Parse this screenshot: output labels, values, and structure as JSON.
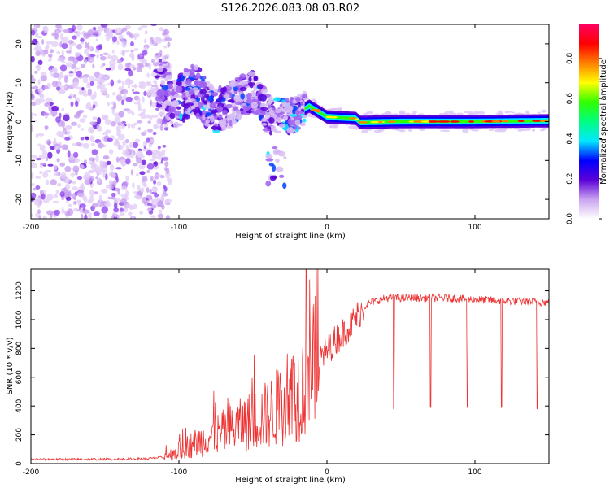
{
  "page_title": "S126.2026.083.08.03.R02",
  "colorbar": {
    "label": "Normalized spectral amplitude",
    "ticks": [
      0.0,
      0.2,
      0.4,
      0.6,
      0.8
    ],
    "tick_labels": [
      "0.0",
      "0.2",
      "0.4",
      "0.6",
      "0.8"
    ],
    "range": [
      0,
      0.97
    ],
    "colors": [
      "#ffffff",
      "#c9a3f0",
      "#5b00d8",
      "#0000ff",
      "#00e8ff",
      "#00ff80",
      "#30ff00",
      "#ffff00",
      "#ff8000",
      "#ff0000",
      "#ff0060"
    ]
  },
  "chart_data": [
    {
      "type": "heatmap",
      "title": "",
      "xlabel": "Height of straight line (km)",
      "ylabel": "Frequency (Hz)",
      "xlim": [
        -200,
        150
      ],
      "ylim": [
        -25,
        25
      ],
      "x_ticks": [
        -200,
        -100,
        0,
        100
      ],
      "x_tick_labels": [
        "-200",
        "-100",
        "0",
        "100"
      ],
      "y_ticks": [
        -20,
        -10,
        0,
        10,
        20
      ],
      "y_tick_labels": [
        "-20",
        "-10",
        "0",
        "10",
        "20"
      ],
      "regions": [
        {
          "name": "noise",
          "x": [
            -200,
            -112
          ],
          "freq": [
            -25,
            25
          ],
          "amplitude": 0.1
        },
        {
          "name": "scattered onset",
          "x": [
            -115,
            -15
          ],
          "freq": [
            -17,
            13
          ],
          "amplitude": 0.3
        },
        {
          "name": "carrier",
          "x": [
            -15,
            150
          ],
          "freq": [
            -1,
            2
          ],
          "amplitude": 0.85
        }
      ],
      "ridge": {
        "x": [
          -115,
          -100,
          -90,
          -80,
          -70,
          -60,
          -50,
          -40,
          -30,
          -20,
          -12,
          0,
          10,
          20,
          22,
          50,
          100,
          150
        ],
        "freq": [
          7,
          5,
          9,
          4,
          3,
          6,
          8,
          2,
          1,
          2,
          4,
          1.2,
          1.0,
          0.8,
          -0.2,
          0.0,
          0.0,
          0.2
        ]
      }
    },
    {
      "type": "line",
      "title": "",
      "xlabel": "Height of straight line (km)",
      "ylabel": "SNR (10 * v/v)",
      "xlim": [
        -200,
        150
      ],
      "ylim": [
        0,
        1350
      ],
      "x_ticks": [
        -200,
        -100,
        0,
        100
      ],
      "x_tick_labels": [
        "-200",
        "-100",
        "0",
        "100"
      ],
      "y_ticks": [
        0,
        200,
        400,
        600,
        800,
        1000,
        1200
      ],
      "y_tick_labels": [
        "0",
        "200",
        "400",
        "600",
        "800",
        "1000",
        "1200"
      ],
      "series": [
        {
          "name": "SNR",
          "color": "#ee3333",
          "x": [
            -200,
            -150,
            -120,
            -110,
            -100,
            -90,
            -80,
            -70,
            -60,
            -50,
            -40,
            -30,
            -20,
            -15,
            -10,
            -5,
            0,
            5,
            10,
            15,
            20,
            25,
            30,
            40,
            60,
            80,
            100,
            120,
            150
          ],
          "values": [
            30,
            30,
            35,
            45,
            90,
            140,
            180,
            220,
            260,
            300,
            340,
            420,
            500,
            560,
            650,
            720,
            780,
            850,
            900,
            950,
            1020,
            1090,
            1120,
            1150,
            1150,
            1150,
            1140,
            1130,
            1120
          ],
          "dips": [
            {
              "x": 45,
              "value": 380
            },
            {
              "x": 70,
              "value": 390
            },
            {
              "x": 95,
              "value": 390
            },
            {
              "x": 118,
              "value": 390
            },
            {
              "x": 142,
              "value": 380
            }
          ],
          "peak": {
            "x": -14,
            "value": 1350
          }
        }
      ]
    }
  ]
}
